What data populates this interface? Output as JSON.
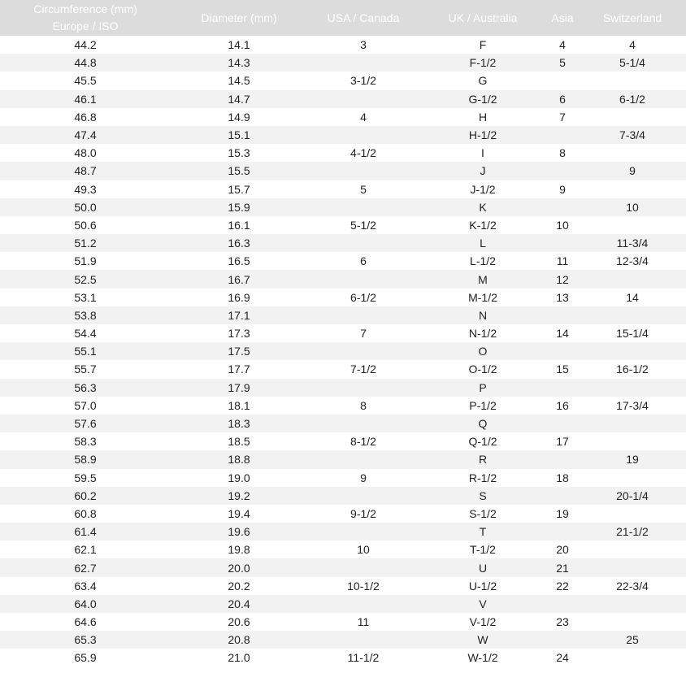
{
  "headers": [
    "Circumference (mm)\nEurope / ISO",
    "Diameter (mm)",
    "USA / Canada",
    "UK / Australia",
    "Asia",
    "Switzerland"
  ],
  "header_line1": "Circumference (mm)",
  "header_line2": "Europe / ISO",
  "colors": {
    "header_bg": "#dcdcdc",
    "header_text": "#ffffff",
    "stripe": "#f2f2f2"
  },
  "rows": [
    [
      "44.2",
      "14.1",
      "3",
      "F",
      "4",
      "4"
    ],
    [
      "44.8",
      "14.3",
      "",
      "F-1/2",
      "5",
      "5-1/4"
    ],
    [
      "45.5",
      "14.5",
      "3-1/2",
      "G",
      "",
      ""
    ],
    [
      "46.1",
      "14.7",
      "",
      "G-1/2",
      "6",
      "6-1/2"
    ],
    [
      "46.8",
      "14.9",
      "4",
      "H",
      "7",
      ""
    ],
    [
      "47.4",
      "15.1",
      "",
      "H-1/2",
      "",
      "7-3/4"
    ],
    [
      "48.0",
      "15.3",
      "4-1/2",
      "I",
      "8",
      ""
    ],
    [
      "48.7",
      "15.5",
      "",
      "J",
      "",
      "9"
    ],
    [
      "49.3",
      "15.7",
      "5",
      "J-1/2",
      "9",
      ""
    ],
    [
      "50.0",
      "15.9",
      "",
      "K",
      "",
      "10"
    ],
    [
      "50.6",
      "16.1",
      "5-1/2",
      "K-1/2",
      "10",
      ""
    ],
    [
      "51.2",
      "16.3",
      "",
      "L",
      "",
      "11-3/4"
    ],
    [
      "51.9",
      "16.5",
      "6",
      "L-1/2",
      "11",
      "12-3/4"
    ],
    [
      "52.5",
      "16.7",
      "",
      "M",
      "12",
      ""
    ],
    [
      "53.1",
      "16.9",
      "6-1/2",
      "M-1/2",
      "13",
      "14"
    ],
    [
      "53.8",
      "17.1",
      "",
      "N",
      "",
      ""
    ],
    [
      "54.4",
      "17.3",
      "7",
      "N-1/2",
      "14",
      "15-1/4"
    ],
    [
      "55.1",
      "17.5",
      "",
      "O",
      "",
      ""
    ],
    [
      "55.7",
      "17.7",
      "7-1/2",
      "O-1/2",
      "15",
      "16-1/2"
    ],
    [
      "56.3",
      "17.9",
      "",
      "P",
      "",
      ""
    ],
    [
      "57.0",
      "18.1",
      "8",
      "P-1/2",
      "16",
      "17-3/4"
    ],
    [
      "57.6",
      "18.3",
      "",
      "Q",
      "",
      ""
    ],
    [
      "58.3",
      "18.5",
      "8-1/2",
      "Q-1/2",
      "17",
      ""
    ],
    [
      "58.9",
      "18.8",
      "",
      "R",
      "",
      "19"
    ],
    [
      "59.5",
      "19.0",
      "9",
      "R-1/2",
      "18",
      ""
    ],
    [
      "60.2",
      "19.2",
      "",
      "S",
      "",
      "20-1/4"
    ],
    [
      "60.8",
      "19.4",
      "9-1/2",
      "S-1/2",
      "19",
      ""
    ],
    [
      "61.4",
      "19.6",
      "",
      "T",
      "",
      "21-1/2"
    ],
    [
      "62.1",
      "19.8",
      "10",
      "T-1/2",
      "20",
      ""
    ],
    [
      "62.7",
      "20.0",
      "",
      "U",
      "21",
      ""
    ],
    [
      "63.4",
      "20.2",
      "10-1/2",
      "U-1/2",
      "22",
      "22-3/4"
    ],
    [
      "64.0",
      "20.4",
      "",
      "V",
      "",
      ""
    ],
    [
      "64.6",
      "20.6",
      "11",
      "V-1/2",
      "23",
      ""
    ],
    [
      "65.3",
      "20.8",
      "",
      "W",
      "",
      "25"
    ],
    [
      "65.9",
      "21.0",
      "11-1/2",
      "W-1/2",
      "24",
      ""
    ]
  ]
}
